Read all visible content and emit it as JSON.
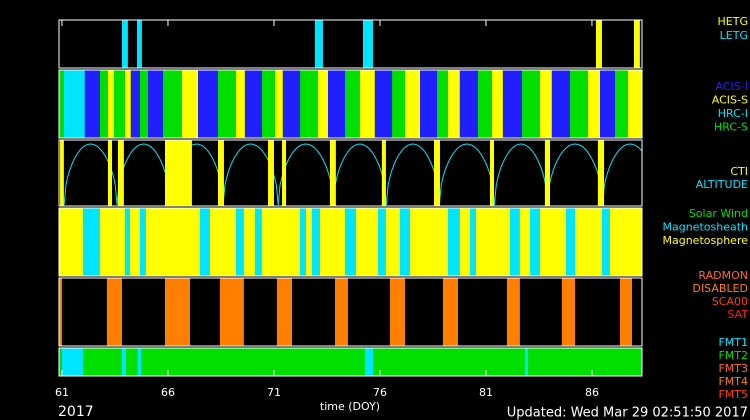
{
  "chart_data": {
    "type": "timeline",
    "xlabel": "time (DOY)",
    "year": "2017",
    "updated": "Updated: Wed Mar 29 02:51:50 2017",
    "xlim": [
      60.86,
      88.36
    ],
    "xticks": [
      61,
      66,
      71,
      76,
      81,
      86
    ],
    "panels": [
      {
        "series": [
          {
            "name": "HETG",
            "color": "#ffff00",
            "intervals": [
              [
                86.19,
                86.47
              ],
              [
                87.98,
                88.26
              ]
            ]
          },
          {
            "name": "LETG",
            "color": "#00e5ff",
            "intervals": [
              [
                63.83,
                64.11
              ],
              [
                64.54,
                64.77
              ],
              [
                72.93,
                73.31
              ],
              [
                75.2,
                75.67
              ]
            ]
          }
        ]
      },
      {
        "series": [
          {
            "name": "ACIS-I",
            "color": "#2020ff",
            "intervals": [
              [
                62.08,
                62.79
              ],
              [
                64.25,
                64.68
              ],
              [
                65.06,
                65.76
              ],
              [
                67.42,
                68.36
              ],
              [
                69.63,
                70.43
              ],
              [
                71.42,
                72.23
              ],
              [
                73.55,
                74.35
              ],
              [
                75.76,
                76.57
              ],
              [
                77.89,
                78.69
              ],
              [
                79.77,
                80.62
              ],
              [
                81.8,
                82.7
              ],
              [
                84.11,
                84.96
              ],
              [
                86.38,
                87.08
              ]
            ]
          },
          {
            "name": "ACIS-S",
            "color": "#ffff00",
            "intervals": [
              [
                63.17,
                63.45
              ],
              [
                63.97,
                64.25
              ],
              [
                66.66,
                67.42
              ],
              [
                69.21,
                69.63
              ],
              [
                71.05,
                71.42
              ],
              [
                73.08,
                73.55
              ],
              [
                75.06,
                75.76
              ],
              [
                77.18,
                77.89
              ],
              [
                79.21,
                79.77
              ],
              [
                81.28,
                81.8
              ],
              [
                83.55,
                84.11
              ],
              [
                85.81,
                86.38
              ],
              [
                87.7,
                88.36
              ]
            ]
          },
          {
            "name": "HRC-I",
            "color": "#00e5ff",
            "intervals": [
              [
                61.09,
                62.08
              ]
            ]
          },
          {
            "name": "HRC-S",
            "color": "#00e000",
            "intervals": [
              [
                60.86,
                61.09
              ],
              [
                62.79,
                63.17
              ],
              [
                63.45,
                63.97
              ],
              [
                64.68,
                65.06
              ],
              [
                65.76,
                66.66
              ],
              [
                68.36,
                69.21
              ],
              [
                70.43,
                71.05
              ],
              [
                72.23,
                73.08
              ],
              [
                74.35,
                75.06
              ],
              [
                76.57,
                77.18
              ],
              [
                78.69,
                79.21
              ],
              [
                80.62,
                81.28
              ],
              [
                82.7,
                83.55
              ],
              [
                84.96,
                85.81
              ],
              [
                87.08,
                87.7
              ]
            ]
          }
        ]
      },
      {
        "series": [
          {
            "name": "CTI",
            "color": "#ffff00",
            "intervals": [
              [
                60.91,
                61.09
              ],
              [
                63.17,
                63.36
              ],
              [
                63.64,
                63.92
              ],
              [
                65.86,
                67.13
              ],
              [
                68.36,
                68.64
              ],
              [
                70.72,
                71.0
              ],
              [
                71.38,
                71.57
              ],
              [
                73.64,
                73.92
              ],
              [
                76.09,
                76.28
              ],
              [
                78.55,
                78.83
              ],
              [
                81.19,
                81.38
              ],
              [
                83.78,
                84.02
              ],
              [
                86.28,
                86.57
              ]
            ]
          },
          {
            "name": "ALTITUDE",
            "color": "#00e5ff",
            "perigees": [
              63.6,
              66.1,
              68.6,
              71.2,
              73.8,
              76.3,
              78.8,
              81.4,
              83.9,
              86.5
            ]
          }
        ]
      },
      {
        "series": [
          {
            "name": "Solar Wind",
            "color": "#00e000",
            "intervals": []
          },
          {
            "name": "Magnetosheath",
            "color": "#00e5ff",
            "intervals": [
              [
                61.99,
                62.79
              ],
              [
                63.97,
                64.21
              ],
              [
                64.68,
                64.96
              ],
              [
                67.51,
                67.98
              ],
              [
                69.21,
                69.58
              ],
              [
                70.1,
                70.43
              ],
              [
                72.23,
                72.51
              ],
              [
                72.79,
                73.17
              ],
              [
                74.35,
                74.87
              ],
              [
                75.91,
                76.28
              ],
              [
                76.94,
                77.42
              ],
              [
                79.21,
                79.77
              ],
              [
                80.25,
                80.53
              ],
              [
                82.13,
                82.6
              ],
              [
                83.08,
                83.55
              ],
              [
                84.77,
                85.2
              ],
              [
                86.47,
                86.85
              ]
            ]
          },
          {
            "name": "Magnetosphere",
            "color": "#ffff00",
            "intervals": [
              [
                60.86,
                88.36
              ]
            ]
          }
        ]
      },
      {
        "series": [
          {
            "name": "RADMON",
            "color": "#ff6a2a",
            "intervals": []
          },
          {
            "name": "DISABLED",
            "color": "#ff8000",
            "intervals": [
              [
                60.86,
                61.0
              ],
              [
                63.12,
                63.83
              ],
              [
                65.86,
                67.04
              ],
              [
                68.45,
                69.58
              ],
              [
                71.14,
                71.85
              ],
              [
                73.88,
                74.49
              ],
              [
                76.47,
                77.18
              ],
              [
                78.97,
                79.68
              ],
              [
                81.99,
                82.6
              ],
              [
                84.58,
                85.2
              ],
              [
                87.32,
                87.89
              ]
            ]
          },
          {
            "name": "SCA00",
            "color": "#ff4000",
            "intervals": []
          },
          {
            "name": "SAT",
            "color": "#ff1a1a",
            "intervals": []
          }
        ]
      },
      {
        "series": [
          {
            "name": "FMT1",
            "color": "#00e5ff",
            "intervals": [
              [
                61.0,
                61.99
              ],
              [
                63.83,
                64.02
              ],
              [
                64.58,
                64.73
              ],
              [
                75.29,
                75.67
              ],
              [
                82.84,
                82.98
              ]
            ]
          },
          {
            "name": "FMT2",
            "color": "#00e000",
            "intervals": [
              [
                60.86,
                88.36
              ]
            ]
          },
          {
            "name": "FMT3",
            "color": "#ff6a2a",
            "intervals": []
          },
          {
            "name": "FMT4",
            "color": "#ff8000",
            "intervals": []
          },
          {
            "name": "FMT5",
            "color": "#ff4000",
            "intervals": []
          }
        ]
      }
    ]
  }
}
